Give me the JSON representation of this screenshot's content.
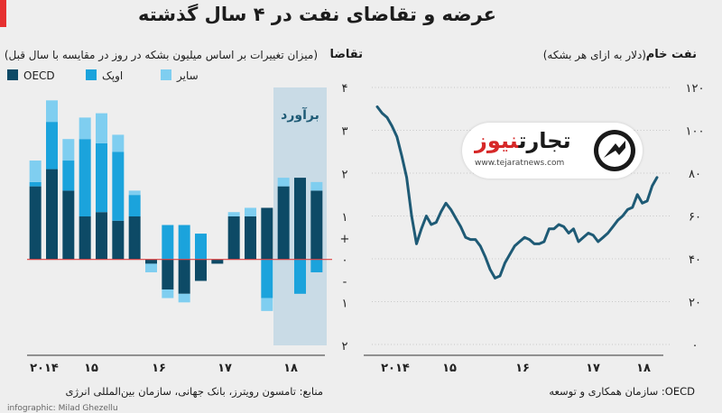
{
  "title": "عرضه و تقاضای نفت در ۴ سال گذشته",
  "colors": {
    "oecd": "#0d4a66",
    "opec": "#1ba3dc",
    "other": "#7fcef0",
    "forecast_band": "#c9dbe6",
    "zero_line": "#e04040",
    "oil_line": "#1e5a75",
    "accent": "#e63030"
  },
  "left_chart": {
    "subtitle_bold": "تقاضا",
    "subtitle": "(میزان تغییرات بر اساس میلیون بشکه در روز در مقایسه با سال قبل)",
    "forecast_label": "برآورد",
    "source": "منابع: تامسون رویترز، بانک جهانی، سازمان بین‌المللی انرژی",
    "credit": "infographic: Milad Ghezellu"
  },
  "right_chart": {
    "subtitle_bold": "نفت خام",
    "subtitle": "(دلار به ازای هر بشکه)",
    "source_note": "OECD: سازمان همکاری و توسعه"
  },
  "brand": {
    "name_dark": "تجارت",
    "name_red": "نیوز",
    "url": "www.tejaratnews.com"
  },
  "chart_data": [
    {
      "type": "bar",
      "stacked": true,
      "ylim": [
        -2,
        4
      ],
      "y_ticks": [
        "۴",
        "۳",
        "۲",
        "۱",
        "+",
        "۰",
        "-",
        "۱",
        "۲"
      ],
      "x_labels": [
        "۲۰۱۴",
        "۱۵",
        "۱۶",
        "۱۷",
        "۱۸"
      ],
      "legend": [
        {
          "name": "OECD",
          "key": "oecd"
        },
        {
          "name": "اوپک",
          "key": "opec"
        },
        {
          "name": "سایر",
          "key": "other"
        }
      ],
      "legend_position": "top-left",
      "forecast_from_index": 15,
      "series": [
        {
          "name": "OECD",
          "values": [
            1.7,
            2.1,
            1.6,
            1.0,
            1.1,
            0.9,
            1.0,
            -0.1,
            -0.7,
            -0.8,
            -0.5,
            -0.1,
            1.0,
            1.0,
            1.2,
            1.7,
            1.9,
            1.6
          ]
        },
        {
          "name": "اوپک",
          "values": [
            0.1,
            1.1,
            0.7,
            1.8,
            1.6,
            1.6,
            0.5,
            0.0,
            0.8,
            0.8,
            0.6,
            0.0,
            0.0,
            0.0,
            -0.9,
            0.0,
            -0.8,
            -0.3
          ]
        },
        {
          "name": "سایر",
          "values": [
            0.5,
            0.5,
            0.5,
            0.5,
            0.7,
            0.4,
            0.1,
            -0.2,
            -0.2,
            -0.2,
            0.0,
            0.0,
            0.1,
            0.2,
            -0.3,
            0.2,
            0.0,
            0.2
          ]
        }
      ]
    },
    {
      "type": "line",
      "ylim": [
        0,
        120
      ],
      "y_ticks": [
        0,
        20,
        40,
        60,
        80,
        100,
        120
      ],
      "x_labels": [
        "۲۰۱۴",
        "۱۵",
        "۱۶",
        "۱۷",
        "۱۸"
      ],
      "series": [
        {
          "name": "نفت خام",
          "values": [
            111,
            108,
            106,
            102,
            97,
            88,
            78,
            60,
            47,
            54,
            60,
            56,
            57,
            62,
            66,
            63,
            59,
            55,
            50,
            49,
            49,
            46,
            41,
            35,
            31,
            32,
            38,
            42,
            46,
            48,
            50,
            49,
            47,
            47,
            48,
            54,
            54,
            56,
            55,
            52,
            54,
            48,
            50,
            52,
            51,
            48,
            50,
            52,
            55,
            58,
            60,
            63,
            64,
            70,
            66,
            67,
            74,
            78
          ]
        }
      ]
    }
  ]
}
